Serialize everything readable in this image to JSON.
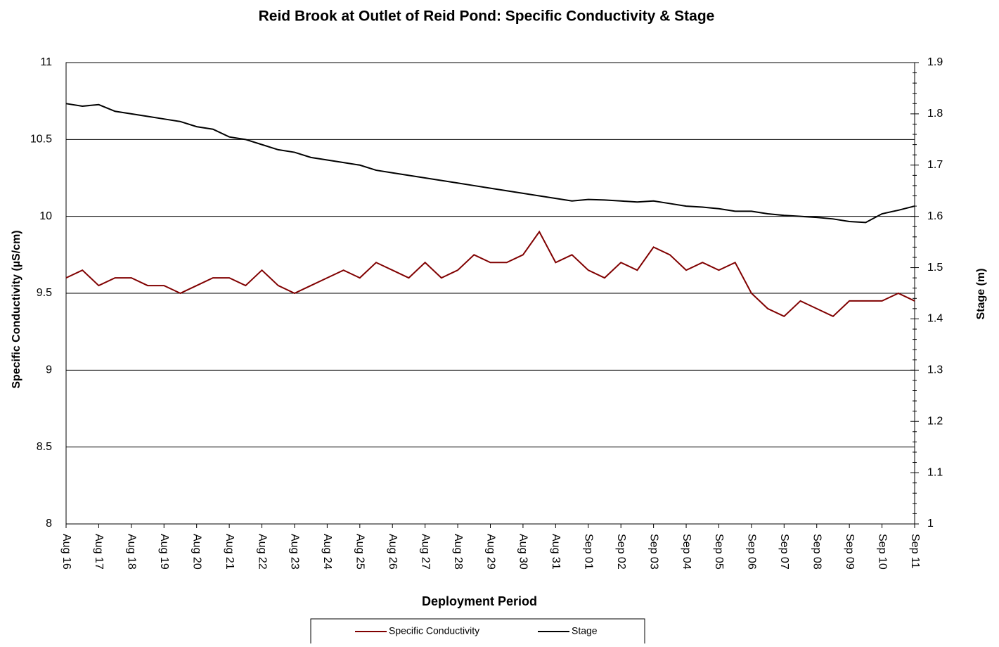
{
  "chart_data": {
    "type": "line",
    "title": "Reid Brook at Outlet of Reid Pond: Specific Conductivity & Stage",
    "x_label": "Deployment Period",
    "y_label": "Specific Conductivity  (µS/cm)",
    "y2_label": "Stage (m)",
    "x": [
      0,
      0.5,
      1,
      1.5,
      2,
      2.5,
      3,
      3.5,
      4,
      4.5,
      5,
      5.5,
      6,
      6.5,
      7,
      7.5,
      8,
      8.5,
      9,
      9.5,
      10,
      10.5,
      11,
      11.5,
      12,
      12.5,
      13,
      13.5,
      14,
      14.5,
      15,
      15.5,
      16,
      16.5,
      17,
      17.5,
      18,
      18.5,
      19,
      19.5,
      20,
      20.5,
      21,
      21.5,
      22,
      22.5,
      23,
      23.5,
      24,
      24.5,
      25,
      25.5,
      26
    ],
    "xlim": [
      0,
      26
    ],
    "xticks": [
      {
        "value": 0,
        "label": "Aug 16"
      },
      {
        "value": 1,
        "label": "Aug 17"
      },
      {
        "value": 2,
        "label": "Aug 18"
      },
      {
        "value": 3,
        "label": "Aug 19"
      },
      {
        "value": 4,
        "label": "Aug 20"
      },
      {
        "value": 5,
        "label": "Aug 21"
      },
      {
        "value": 6,
        "label": "Aug 22"
      },
      {
        "value": 7,
        "label": "Aug 23"
      },
      {
        "value": 8,
        "label": "Aug 24"
      },
      {
        "value": 9,
        "label": "Aug 25"
      },
      {
        "value": 10,
        "label": "Aug 26"
      },
      {
        "value": 11,
        "label": "Aug 27"
      },
      {
        "value": 12,
        "label": "Aug 28"
      },
      {
        "value": 13,
        "label": "Aug 29"
      },
      {
        "value": 14,
        "label": "Aug 30"
      },
      {
        "value": 15,
        "label": "Aug 31"
      },
      {
        "value": 16,
        "label": "Sep 01"
      },
      {
        "value": 17,
        "label": "Sep 02"
      },
      {
        "value": 18,
        "label": "Sep 03"
      },
      {
        "value": 19,
        "label": "Sep 04"
      },
      {
        "value": 20,
        "label": "Sep 05"
      },
      {
        "value": 21,
        "label": "Sep 06"
      },
      {
        "value": 22,
        "label": "Sep 07"
      },
      {
        "value": 23,
        "label": "Sep 08"
      },
      {
        "value": 24,
        "label": "Sep 09"
      },
      {
        "value": 25,
        "label": "Sep 10"
      },
      {
        "value": 26,
        "label": "Sep 11"
      }
    ],
    "ylim": [
      8,
      11
    ],
    "yticks": [
      8,
      8.5,
      9,
      9.5,
      10,
      10.5,
      11
    ],
    "y2lim": [
      1,
      1.9
    ],
    "y2ticks": [
      1,
      1.1,
      1.2,
      1.3,
      1.4,
      1.5,
      1.6,
      1.7,
      1.8,
      1.9
    ],
    "grid": true,
    "legend": "bottom",
    "series": [
      {
        "name": "Specific Conductivity",
        "color": "#800000",
        "axis": "y",
        "values": [
          9.6,
          9.65,
          9.55,
          9.6,
          9.6,
          9.55,
          9.55,
          9.5,
          9.55,
          9.6,
          9.6,
          9.55,
          9.65,
          9.55,
          9.5,
          9.55,
          9.6,
          9.65,
          9.6,
          9.7,
          9.65,
          9.6,
          9.7,
          9.6,
          9.65,
          9.75,
          9.7,
          9.7,
          9.75,
          9.9,
          9.7,
          9.75,
          9.65,
          9.6,
          9.7,
          9.65,
          9.8,
          9.75,
          9.65,
          9.7,
          9.65,
          9.7,
          9.5,
          9.4,
          9.35,
          9.45,
          9.4,
          9.35,
          9.45,
          9.45,
          9.45,
          9.5,
          9.45
        ]
      },
      {
        "name": "Stage",
        "color": "#000000",
        "axis": "y2",
        "values": [
          1.82,
          1.815,
          1.818,
          1.805,
          1.8,
          1.795,
          1.79,
          1.785,
          1.775,
          1.77,
          1.755,
          1.75,
          1.74,
          1.73,
          1.725,
          1.715,
          1.71,
          1.705,
          1.7,
          1.69,
          1.685,
          1.68,
          1.675,
          1.67,
          1.665,
          1.66,
          1.655,
          1.65,
          1.645,
          1.64,
          1.635,
          1.63,
          1.633,
          1.632,
          1.63,
          1.628,
          1.63,
          1.625,
          1.62,
          1.618,
          1.615,
          1.61,
          1.61,
          1.605,
          1.602,
          1.6,
          1.598,
          1.595,
          1.59,
          1.588,
          1.605,
          1.612,
          1.62
        ]
      }
    ]
  }
}
